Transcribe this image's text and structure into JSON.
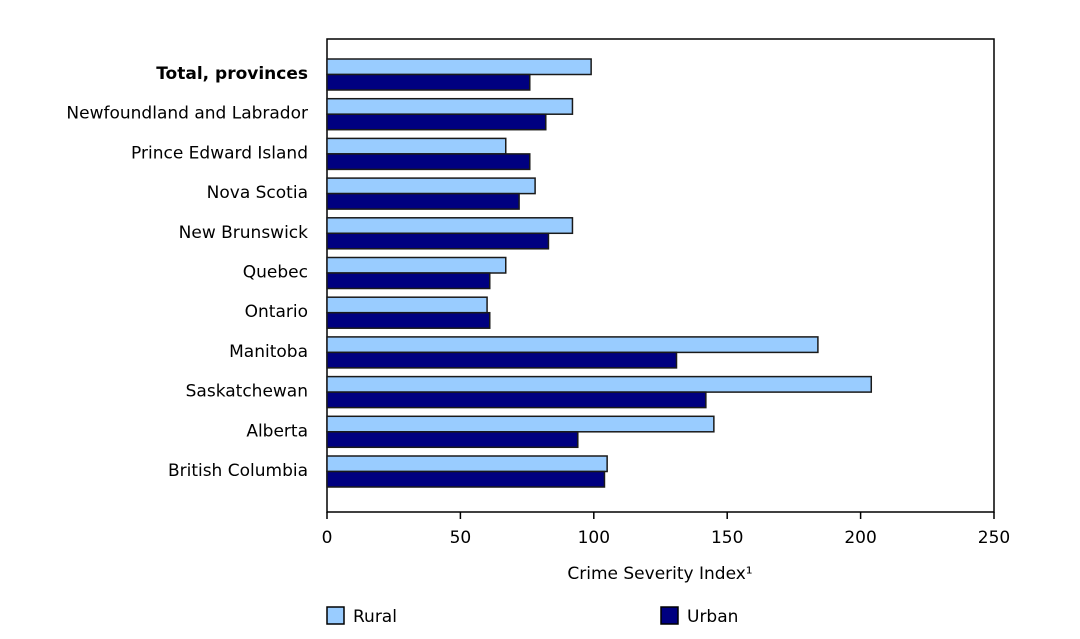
{
  "chart_data": {
    "type": "bar",
    "orientation": "horizontal",
    "categories": [
      "Total, provinces",
      "Newfoundland and Labrador",
      "Prince Edward Island",
      "Nova Scotia",
      "New Brunswick",
      "Quebec",
      "Ontario",
      "Manitoba",
      "Saskatchewan",
      "Alberta",
      "British Columbia"
    ],
    "bold_categories": [
      "Total, provinces"
    ],
    "series": [
      {
        "name": "Rural",
        "color": "#99ccff",
        "values": [
          99,
          92,
          67,
          78,
          92,
          67,
          60,
          184,
          204,
          145,
          105
        ]
      },
      {
        "name": "Urban",
        "color": "#000080",
        "values": [
          76,
          82,
          76,
          72,
          83,
          61,
          61,
          131,
          142,
          94,
          104
        ]
      }
    ],
    "xlabel": "Crime Severity Index¹",
    "xlim": [
      0,
      250
    ],
    "xticks": [
      "0",
      "50",
      "100",
      "150",
      "200",
      "250"
    ],
    "grid": false,
    "legend": "bottom"
  }
}
